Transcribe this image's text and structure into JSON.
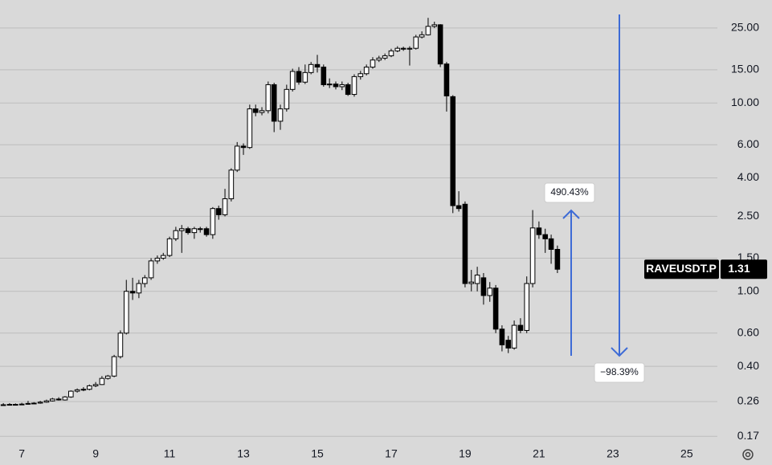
{
  "chart_data": {
    "type": "candlestick",
    "symbol": "RAVEUSDT.P",
    "last_price": 1.31,
    "log_scale": true,
    "grid": true,
    "up_color": "#ffffff",
    "down_color": "#000000",
    "arrow_color": "#3d6bd6",
    "x": [
      6.5,
      6.67,
      6.83,
      7,
      7.17,
      7.33,
      7.5,
      7.67,
      7.83,
      8,
      8.17,
      8.33,
      8.5,
      8.67,
      8.83,
      9,
      9.17,
      9.33,
      9.5,
      9.67,
      9.83,
      10,
      10.17,
      10.33,
      10.5,
      10.67,
      10.83,
      11,
      11.17,
      11.33,
      11.5,
      11.67,
      11.83,
      12,
      12.17,
      12.33,
      12.5,
      12.67,
      12.83,
      13,
      13.17,
      13.33,
      13.5,
      13.67,
      13.83,
      14,
      14.17,
      14.33,
      14.5,
      14.67,
      14.83,
      15,
      15.17,
      15.33,
      15.5,
      15.67,
      15.83,
      16,
      16.17,
      16.33,
      16.5,
      16.67,
      16.83,
      17,
      17.17,
      17.33,
      17.5,
      17.67,
      17.83,
      18,
      18.17,
      18.33,
      18.5,
      18.67,
      18.83,
      19,
      19.17,
      19.33,
      19.5,
      19.67,
      19.83,
      20,
      20.17,
      20.33,
      20.5,
      20.67,
      20.83,
      21,
      21.17,
      21.33,
      21.5
    ],
    "open": [
      0.25,
      0.25,
      0.251,
      0.25,
      0.252,
      0.254,
      0.255,
      0.258,
      0.262,
      0.268,
      0.265,
      0.275,
      0.295,
      0.3,
      0.302,
      0.315,
      0.32,
      0.345,
      0.355,
      0.45,
      0.6,
      1.0,
      0.98,
      1.1,
      1.18,
      1.45,
      1.5,
      1.55,
      1.9,
      2.1,
      2.15,
      2.05,
      2.15,
      2.15,
      2.0,
      2.75,
      2.55,
      3.1,
      4.4,
      5.9,
      5.8,
      9.3,
      8.9,
      9.1,
      12.5,
      8.0,
      9.3,
      11.8,
      14.7,
      12.9,
      14.5,
      16.0,
      15.5,
      12.5,
      12.6,
      12.2,
      12.5,
      11.1,
      13.8,
      14.3,
      15.5,
      16.9,
      17.3,
      17.8,
      18.9,
      19.5,
      19.3,
      19.5,
      22.4,
      23.0,
      25.5,
      26.0,
      16.1,
      10.8,
      2.85,
      2.9,
      1.1,
      1.1,
      1.18,
      0.95,
      1.04,
      0.63,
      0.55,
      0.5,
      0.66,
      0.62,
      1.1,
      2.17,
      2.0,
      1.9,
      1.67
    ],
    "high": [
      0.255,
      0.255,
      0.254,
      0.256,
      0.262,
      0.258,
      0.262,
      0.266,
      0.272,
      0.274,
      0.278,
      0.298,
      0.305,
      0.31,
      0.32,
      0.33,
      0.355,
      0.36,
      0.46,
      0.62,
      1.15,
      1.18,
      1.15,
      1.22,
      1.5,
      1.55,
      1.6,
      1.95,
      2.2,
      2.25,
      2.2,
      2.2,
      2.2,
      2.2,
      2.8,
      2.85,
      3.5,
      4.5,
      6.2,
      6.1,
      9.8,
      9.8,
      9.5,
      13.0,
      12.8,
      9.8,
      12.5,
      15.2,
      15.5,
      16.0,
      16.5,
      18.0,
      16.0,
      13.5,
      13.0,
      13.0,
      12.8,
      14.2,
      14.8,
      16.0,
      17.5,
      17.8,
      18.3,
      19.4,
      20.0,
      19.9,
      20.0,
      23.0,
      24.0,
      28.3,
      27.0,
      26.2,
      16.5,
      11.0,
      3.4,
      3.0,
      1.3,
      1.35,
      1.25,
      1.12,
      1.08,
      0.66,
      0.58,
      0.7,
      0.72,
      1.2,
      2.7,
      2.35,
      2.15,
      2.0,
      1.75
    ],
    "low": [
      0.248,
      0.248,
      0.248,
      0.249,
      0.25,
      0.252,
      0.253,
      0.256,
      0.26,
      0.263,
      0.263,
      0.272,
      0.29,
      0.295,
      0.298,
      0.31,
      0.318,
      0.34,
      0.35,
      0.44,
      0.59,
      0.9,
      0.92,
      1.05,
      1.15,
      1.4,
      1.47,
      1.52,
      1.85,
      1.6,
      2.0,
      1.9,
      2.05,
      1.95,
      1.9,
      2.4,
      2.5,
      3.0,
      4.3,
      5.3,
      5.7,
      8.5,
      8.6,
      8.8,
      7.0,
      7.2,
      9.0,
      11.5,
      12.5,
      12.6,
      14.2,
      14.5,
      12.2,
      12.0,
      11.8,
      11.7,
      10.9,
      10.8,
      13.3,
      14.0,
      15.2,
      16.5,
      16.9,
      17.5,
      18.6,
      18.9,
      15.8,
      19.2,
      22.0,
      22.8,
      25.0,
      15.5,
      9.0,
      2.6,
      2.65,
      1.05,
      1.0,
      1.0,
      0.85,
      0.88,
      0.6,
      0.48,
      0.47,
      0.49,
      0.6,
      0.6,
      1.05,
      1.9,
      1.6,
      1.4,
      1.25
    ],
    "close": [
      0.25,
      0.251,
      0.25,
      0.252,
      0.254,
      0.255,
      0.258,
      0.262,
      0.268,
      0.265,
      0.275,
      0.295,
      0.3,
      0.302,
      0.315,
      0.32,
      0.345,
      0.355,
      0.45,
      0.6,
      1.0,
      0.98,
      1.1,
      1.18,
      1.45,
      1.5,
      1.55,
      1.9,
      2.1,
      2.15,
      2.05,
      2.15,
      2.15,
      2.0,
      2.75,
      2.55,
      3.1,
      4.4,
      5.9,
      5.8,
      9.3,
      8.9,
      9.1,
      12.5,
      8.0,
      9.3,
      11.8,
      14.7,
      12.9,
      14.5,
      16.0,
      15.5,
      12.5,
      12.6,
      12.2,
      12.5,
      11.1,
      13.8,
      14.3,
      15.5,
      16.9,
      17.3,
      17.8,
      18.9,
      19.5,
      19.3,
      19.5,
      22.4,
      23.0,
      25.5,
      26.0,
      16.1,
      10.9,
      2.85,
      2.75,
      1.1,
      1.12,
      1.22,
      0.95,
      1.04,
      0.63,
      0.52,
      0.5,
      0.66,
      0.62,
      1.1,
      2.17,
      2.0,
      1.9,
      1.67,
      1.31
    ],
    "xlim": [
      6.41,
      25.83
    ],
    "xticks": [
      7,
      9,
      11,
      13,
      15,
      17,
      19,
      21,
      23,
      25
    ],
    "ylim": [
      0.156,
      35.2
    ],
    "yticks": [
      {
        "value": 25,
        "label": "25.00"
      },
      {
        "value": 15,
        "label": "15.00"
      },
      {
        "value": 10,
        "label": "10.00"
      },
      {
        "value": 6,
        "label": "6.00"
      },
      {
        "value": 4,
        "label": "4.00"
      },
      {
        "value": 2.5,
        "label": "2.50"
      },
      {
        "value": 1.5,
        "label": "1.50"
      },
      {
        "value": 1,
        "label": "1.00"
      },
      {
        "value": 0.6,
        "label": "0.60"
      },
      {
        "value": 0.4,
        "label": "0.40"
      },
      0.26,
      0.17
    ],
    "annotations": [
      {
        "text": "490.43%"
      },
      {
        "text": "−98.39%"
      }
    ]
  }
}
